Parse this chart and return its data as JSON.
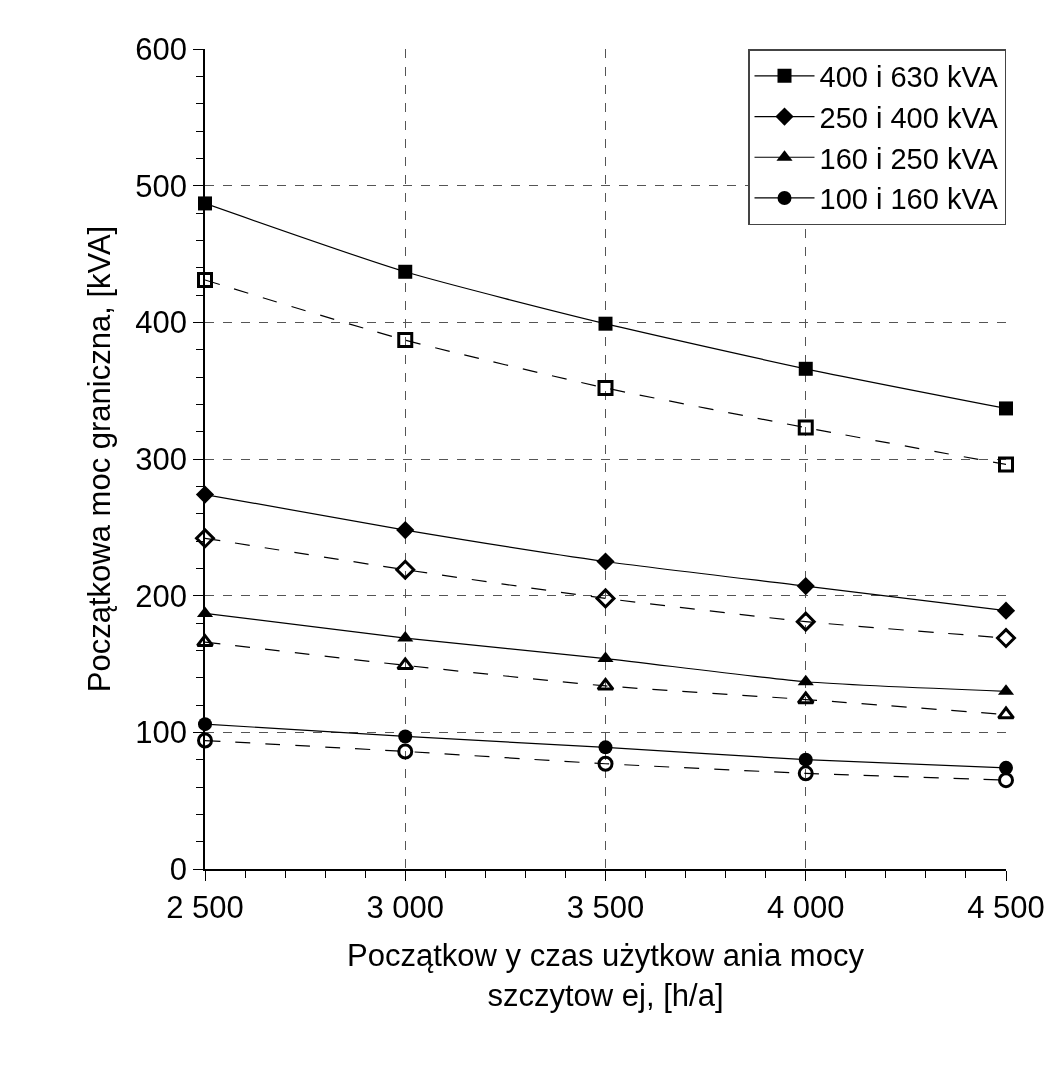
{
  "chart_data": {
    "type": "line",
    "xlabel": "Początkow y czas użytkow ania mocy\nszczytow ej, [h/a]",
    "ylabel": "Początkowa moc graniczna, [kVA]",
    "x": [
      2500,
      3000,
      3500,
      4000,
      4500
    ],
    "series": [
      {
        "name": "400 i 630 kVA",
        "color": "#000000",
        "marker": "square",
        "line_style": "solid",
        "values": [
          487,
          437,
          399,
          366,
          337
        ]
      },
      {
        "color": "#000000",
        "marker": "square-open",
        "line_style": "dashed",
        "values": [
          431,
          387,
          352,
          323,
          296
        ]
      },
      {
        "name": "250 i 400 kVA",
        "color": "#000000",
        "marker": "diamond",
        "line_style": "solid",
        "values": [
          274,
          248,
          225,
          207,
          189
        ]
      },
      {
        "color": "#000000",
        "marker": "diamond-open",
        "line_style": "dashed",
        "values": [
          242,
          219,
          198,
          181,
          169
        ]
      },
      {
        "name": "160 i 250 kVA",
        "color": "#000000",
        "marker": "triangle",
        "line_style": "solid",
        "values": [
          187,
          169,
          154,
          137,
          130
        ]
      },
      {
        "color": "#000000",
        "marker": "triangle-open",
        "line_style": "dashed",
        "values": [
          166,
          149,
          134,
          124,
          113
        ]
      },
      {
        "name": "100 i 160 kVA",
        "color": "#000000",
        "marker": "circle",
        "line_style": "solid",
        "values": [
          106,
          97,
          89,
          80,
          74
        ]
      },
      {
        "color": "#000000",
        "marker": "circle-open",
        "line_style": "dashed",
        "values": [
          94,
          86,
          77,
          70,
          65
        ]
      }
    ],
    "xlim": [
      2500,
      4500
    ],
    "xticks": [
      {
        "value": 2500,
        "label": "2 500"
      },
      {
        "value": 3000,
        "label": "3 000"
      },
      {
        "value": 3500,
        "label": "3 500"
      },
      {
        "value": 4000,
        "label": "4 000"
      },
      {
        "value": 4500,
        "label": "4 500"
      }
    ],
    "ylim": [
      0,
      600
    ],
    "yticks": [
      0,
      100,
      200,
      300,
      400,
      500,
      600
    ],
    "grid": true,
    "legend": "top right"
  }
}
